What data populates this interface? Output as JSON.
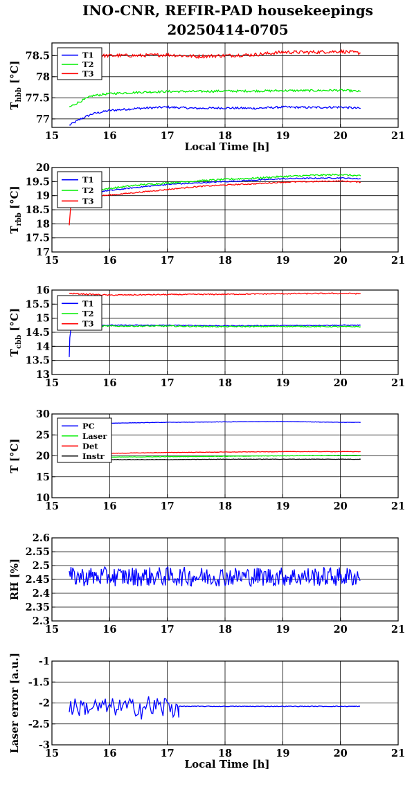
{
  "title": [
    "INO-CNR, REFIR-PAD housekeepings",
    "20250414-0705"
  ],
  "colors": {
    "blue": "#0000ff",
    "green": "#00ee00",
    "red": "#ff0000",
    "black": "#000000"
  },
  "chart_data": [
    {
      "type": "line",
      "ylabel": {
        "main": "T",
        "sub": "hbb",
        "unit": " [°C]"
      },
      "xlabel": "Local Time [h]",
      "xlim": [
        15,
        21
      ],
      "ylim": [
        76.8,
        78.8
      ],
      "yticks": [
        "77",
        "77.5",
        "78",
        "78.5"
      ],
      "xticks": [
        "15",
        "16",
        "17",
        "18",
        "19",
        "20",
        "21"
      ],
      "series": [
        {
          "name": "T1",
          "color": "#0000ff",
          "x": [
            15.3,
            15.5,
            15.7,
            16.0,
            16.5,
            17.0,
            17.5,
            18.0,
            18.5,
            19.0,
            19.5,
            20.0,
            20.35
          ],
          "values": [
            76.85,
            77.0,
            77.12,
            77.2,
            77.25,
            77.28,
            77.25,
            77.26,
            77.25,
            77.28,
            77.27,
            77.28,
            77.25
          ],
          "noise": 0.025
        },
        {
          "name": "T2",
          "color": "#00ee00",
          "x": [
            15.3,
            15.5,
            15.7,
            16.0,
            16.5,
            17.0,
            17.5,
            18.0,
            18.5,
            19.0,
            19.5,
            20.0,
            20.35
          ],
          "values": [
            77.28,
            77.42,
            77.55,
            77.6,
            77.63,
            77.65,
            77.65,
            77.66,
            77.66,
            77.67,
            77.67,
            77.68,
            77.65
          ],
          "noise": 0.025
        },
        {
          "name": "T3",
          "color": "#ff0000",
          "x": [
            15.3,
            16.0,
            16.5,
            17.0,
            17.5,
            18.0,
            18.5,
            19.0,
            19.5,
            20.0,
            20.35
          ],
          "values": [
            78.48,
            78.5,
            78.5,
            78.52,
            78.48,
            78.5,
            78.52,
            78.58,
            78.58,
            78.6,
            78.56
          ],
          "noise": 0.04
        }
      ]
    },
    {
      "type": "line",
      "ylabel": {
        "main": "T",
        "sub": "rbb",
        "unit": " [°C]"
      },
      "xlim": [
        15,
        21
      ],
      "ylim": [
        17,
        20
      ],
      "yticks": [
        "17",
        "17.5",
        "18",
        "18.5",
        "19",
        "19.5",
        "20"
      ],
      "xticks": [
        "15",
        "16",
        "17",
        "18",
        "19",
        "20",
        "21"
      ],
      "series": [
        {
          "name": "T1",
          "color": "#0000ff",
          "x": [
            15.85,
            16.5,
            17.0,
            17.5,
            18.0,
            18.5,
            19.0,
            19.5,
            20.0,
            20.35
          ],
          "values": [
            19.15,
            19.3,
            19.4,
            19.45,
            19.5,
            19.55,
            19.6,
            19.62,
            19.63,
            19.6
          ],
          "noise": 0.02
        },
        {
          "name": "T2",
          "color": "#00ee00",
          "x": [
            15.85,
            16.5,
            17.0,
            17.5,
            18.0,
            18.5,
            19.0,
            19.5,
            20.0,
            20.35
          ],
          "values": [
            19.22,
            19.38,
            19.45,
            19.52,
            19.58,
            19.62,
            19.68,
            19.72,
            19.75,
            19.7
          ],
          "noise": 0.03
        },
        {
          "name": "T3",
          "color": "#ff0000",
          "x": [
            15.3,
            15.32,
            15.34,
            15.85,
            16.0,
            16.5,
            17.0,
            17.5,
            18.0,
            18.5,
            19.0,
            19.5,
            20.0,
            20.35
          ],
          "values": [
            17.95,
            18.5,
            18.95,
            19.0,
            19.02,
            19.12,
            19.22,
            19.32,
            19.38,
            19.42,
            19.48,
            19.5,
            19.52,
            19.48
          ],
          "noise": 0.02
        }
      ]
    },
    {
      "type": "line",
      "ylabel": {
        "main": "T",
        "sub": "cbb",
        "unit": " [°C]"
      },
      "xlim": [
        15,
        21
      ],
      "ylim": [
        13,
        16
      ],
      "yticks": [
        "13",
        "13.5",
        "14",
        "14.5",
        "15",
        "15.5",
        "16"
      ],
      "xticks": [
        "15",
        "16",
        "17",
        "18",
        "19",
        "20",
        "21"
      ],
      "series": [
        {
          "name": "T1",
          "color": "#0000ff",
          "x": [
            15.3,
            15.31,
            15.33,
            15.36,
            15.4,
            16.0,
            17.0,
            18.0,
            19.0,
            20.0,
            20.35
          ],
          "values": [
            13.62,
            14.3,
            14.65,
            14.75,
            14.75,
            14.75,
            14.75,
            14.73,
            14.74,
            14.75,
            14.75
          ],
          "noise": 0.015
        },
        {
          "name": "T2",
          "color": "#00ee00",
          "x": [
            15.85,
            16.0,
            17.0,
            18.0,
            19.0,
            20.0,
            20.35
          ],
          "values": [
            14.72,
            14.72,
            14.72,
            14.7,
            14.71,
            14.7,
            14.7
          ],
          "noise": 0.02
        },
        {
          "name": "T3",
          "color": "#ff0000",
          "x": [
            15.3,
            16.0,
            17.0,
            18.0,
            19.0,
            20.0,
            20.35
          ],
          "values": [
            15.88,
            15.82,
            15.84,
            15.85,
            15.87,
            15.88,
            15.87
          ],
          "noise": 0.02
        }
      ]
    },
    {
      "type": "line",
      "ylabel": {
        "main": "T [°C]"
      },
      "xlim": [
        15,
        21
      ],
      "ylim": [
        10,
        30
      ],
      "yticks": [
        "10",
        "15",
        "20",
        "25",
        "30"
      ],
      "xticks": [
        "15",
        "16",
        "17",
        "18",
        "19",
        "20",
        "21"
      ],
      "series": [
        {
          "name": "PC",
          "color": "#0000ff",
          "x": [
            15.3,
            16.0,
            17.0,
            18.0,
            19.0,
            20.0,
            20.35
          ],
          "values": [
            27.6,
            27.8,
            28.0,
            28.1,
            28.2,
            28.0,
            28.0
          ],
          "noise": 0.04
        },
        {
          "name": "Laser",
          "color": "#00ee00",
          "x": [
            15.3,
            16.0,
            17.0,
            18.0,
            19.0,
            20.0,
            20.35
          ],
          "values": [
            19.6,
            19.7,
            19.8,
            19.9,
            20.0,
            20.1,
            20.1
          ],
          "noise": 0.05
        },
        {
          "name": "Det",
          "color": "#ff0000",
          "x": [
            15.3,
            16.0,
            17.0,
            18.0,
            19.0,
            20.0,
            20.35
          ],
          "values": [
            20.3,
            20.6,
            20.8,
            20.9,
            21.0,
            21.0,
            21.0
          ],
          "noise": 0.05
        },
        {
          "name": "Instr",
          "color": "#000000",
          "x": [
            15.3,
            16.0,
            17.0,
            18.0,
            19.0,
            20.0,
            20.35
          ],
          "values": [
            19.1,
            19.1,
            19.1,
            19.2,
            19.2,
            19.2,
            19.2
          ],
          "noise": 0.05
        }
      ]
    },
    {
      "type": "line",
      "ylabel": {
        "main": "RH [%]"
      },
      "xlim": [
        15,
        21
      ],
      "ylim": [
        2.3,
        2.6
      ],
      "yticks": [
        "2.3",
        "2.35",
        "2.4",
        "2.45",
        "2.5",
        "2.55",
        "2.6"
      ],
      "xticks": [
        "15",
        "16",
        "17",
        "18",
        "19",
        "20",
        "21"
      ],
      "series": [
        {
          "name": "",
          "color": "#0000ff",
          "x": [
            15.3,
            15.5,
            16.0,
            16.2,
            16.5,
            17.0,
            17.5,
            18.0,
            18.5,
            19.0,
            19.5,
            20.0,
            20.1,
            20.35
          ],
          "values": [
            2.48,
            2.46,
            2.47,
            2.5,
            2.45,
            2.47,
            2.46,
            2.46,
            2.45,
            2.45,
            2.44,
            2.44,
            2.47,
            2.41
          ],
          "noise": 0.022
        }
      ]
    },
    {
      "type": "line",
      "ylabel": {
        "main": "Laser error [a.u.]"
      },
      "xlabel": "Local Time [h]",
      "xlim": [
        15,
        21
      ],
      "ylim": [
        -3,
        -1
      ],
      "yticks": [
        "-3",
        "-2.5",
        "-2",
        "-1.5",
        "-1"
      ],
      "xticks": [
        "15",
        "16",
        "17",
        "18",
        "19",
        "20",
        "21"
      ],
      "series": [
        {
          "name": "",
          "color": "#0000ff",
          "x": [
            15.3,
            15.5,
            16.0,
            16.5,
            17.0,
            17.2,
            17.25,
            18.0,
            19.0,
            20.0,
            20.35
          ],
          "values": [
            -2.05,
            -2.0,
            -2.05,
            -2.1,
            -2.2,
            -2.1,
            -2.08,
            -2.08,
            -2.08,
            -2.08,
            -2.08
          ],
          "noise": 0.0
        }
      ]
    }
  ]
}
